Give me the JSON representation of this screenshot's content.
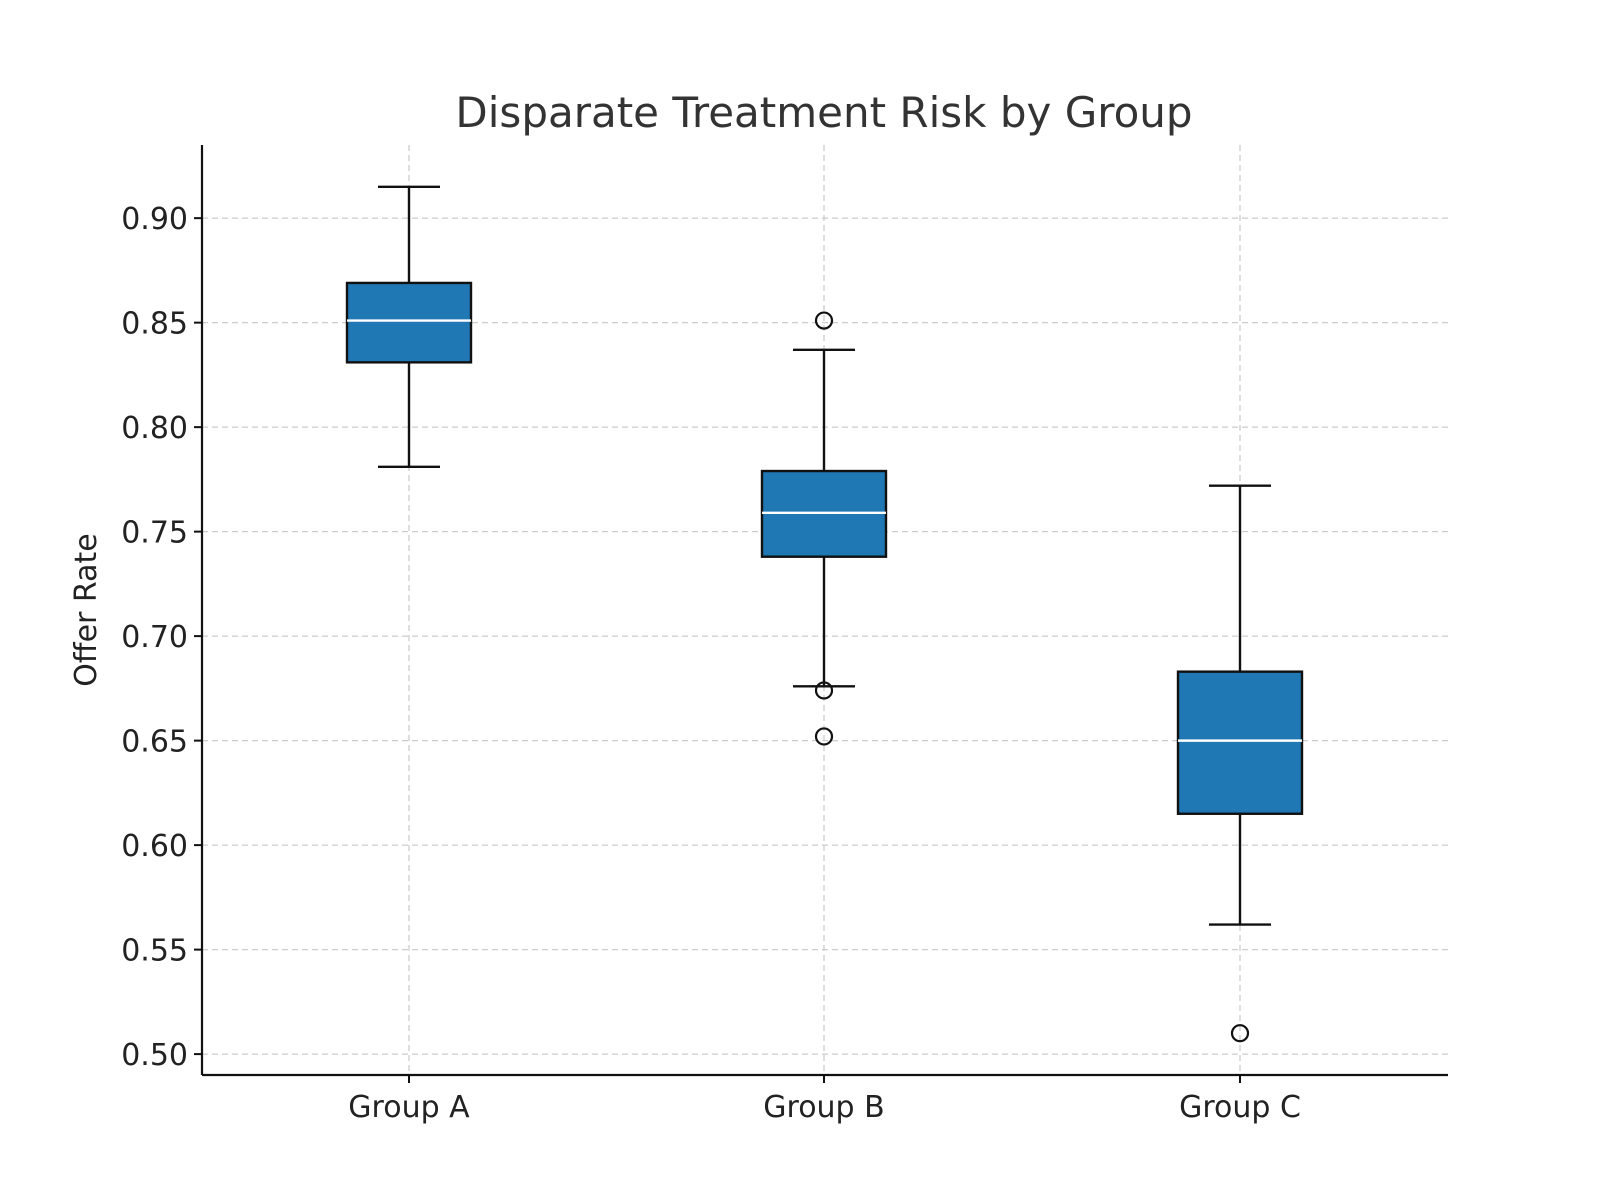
{
  "chart_data": {
    "type": "box",
    "title": "Disparate Treatment Risk by Group",
    "xlabel": "",
    "ylabel": "Offer Rate",
    "ylim": [
      0.49,
      0.935
    ],
    "yticks": [
      0.5,
      0.55,
      0.6,
      0.65,
      0.7,
      0.75,
      0.8,
      0.85,
      0.9
    ],
    "ytick_labels": [
      "0.50",
      "0.55",
      "0.60",
      "0.65",
      "0.70",
      "0.75",
      "0.80",
      "0.85",
      "0.90"
    ],
    "grid": true,
    "box_color": "#1f77b4",
    "median_color": "#ffffff",
    "edge_color": "#111111",
    "grid_color": "#cccccc",
    "categories": [
      "Group A",
      "Group B",
      "Group C"
    ],
    "boxes": [
      {
        "whisker_low": 0.781,
        "q1": 0.831,
        "median": 0.851,
        "q3": 0.869,
        "whisker_high": 0.915,
        "outliers": []
      },
      {
        "whisker_low": 0.676,
        "q1": 0.738,
        "median": 0.759,
        "q3": 0.779,
        "whisker_high": 0.837,
        "outliers": [
          0.851,
          0.674,
          0.652
        ]
      },
      {
        "whisker_low": 0.562,
        "q1": 0.615,
        "median": 0.65,
        "q3": 0.683,
        "whisker_high": 0.772,
        "outliers": [
          0.51
        ]
      }
    ]
  }
}
